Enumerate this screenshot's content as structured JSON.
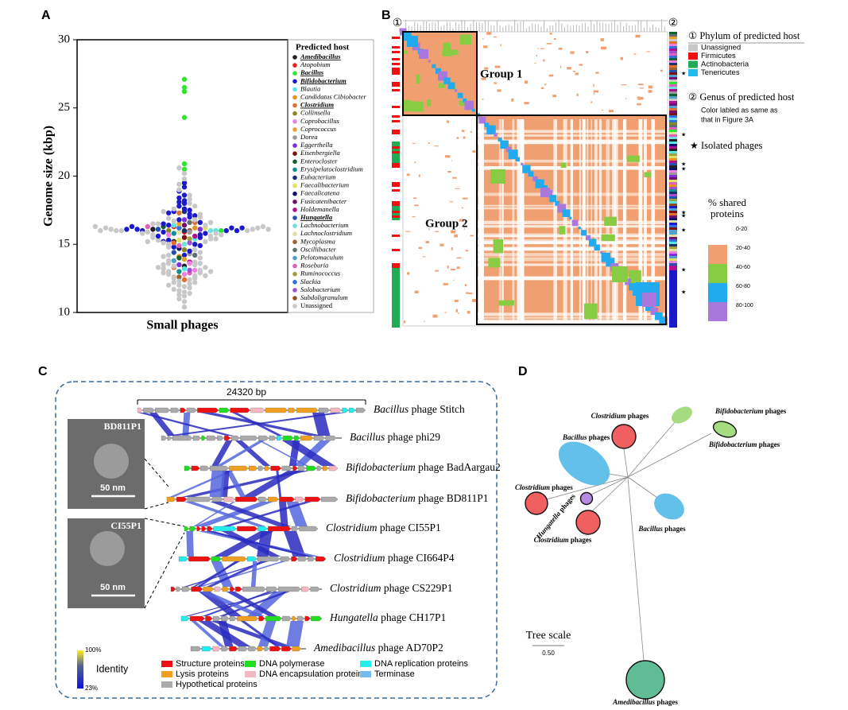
{
  "chart_data": {
    "type": "scatter",
    "label": "A",
    "ylabel": "Genome size (kbp)",
    "xlabel": "Small phages",
    "legend_title": "Predicted host",
    "ylim": [
      10,
      30
    ],
    "yticks": [
      10,
      15,
      20,
      25,
      30
    ],
    "series": [
      {
        "name": "Amedibacillus",
        "color": "#222222",
        "highlight": true,
        "values": [
          13.4,
          15.2,
          16.1
        ]
      },
      {
        "name": "Atopobium",
        "color": "#e8231f",
        "values": [
          15.9,
          16.3
        ]
      },
      {
        "name": "Bacillus",
        "color": "#2ee62e",
        "highlight": true,
        "values": [
          27.1,
          26.5,
          26.2,
          24.3,
          20.9,
          20.5,
          16.0
        ]
      },
      {
        "name": "Bifidobacterium",
        "color": "#1a1acc",
        "highlight": true,
        "values": [
          14.2,
          14.5,
          14.8,
          15.0,
          15.3,
          15.5,
          15.7,
          15.9,
          16.0,
          16.0,
          16.1,
          16.2,
          16.4,
          16.6,
          16.8,
          17.0,
          17.2,
          17.4,
          17.6,
          17.8,
          18.0,
          18.2,
          18.4,
          18.6,
          18.9,
          19.2,
          19.5,
          15.8,
          16.3,
          16.5,
          17.1,
          17.5,
          18.1,
          15.2,
          14.9,
          16.0,
          16.1,
          15.6,
          16.2,
          17.3
        ]
      },
      {
        "name": "Blautia",
        "color": "#55e6e6",
        "values": [
          13.2,
          15.4,
          16.0,
          16.4
        ]
      },
      {
        "name": "Candidatus Cibiobacter",
        "color": "#e89020",
        "values": [
          14.1,
          16.2
        ]
      },
      {
        "name": "Clostridium",
        "color": "#e07030",
        "highlight": true,
        "values": [
          12.4,
          13.3,
          15.1,
          16.6,
          17.3
        ]
      },
      {
        "name": "Collinsella",
        "color": "#888820",
        "values": [
          14.6,
          16.0
        ]
      },
      {
        "name": "Coprobacillus",
        "color": "#f080e0",
        "values": [
          12.8,
          13.1,
          13.6,
          15.7
        ]
      },
      {
        "name": "Coprococcus",
        "color": "#e8a030",
        "values": [
          13.9,
          16.5
        ]
      },
      {
        "name": "Dorea",
        "color": "#999999",
        "values": [
          14.3,
          15.9
        ]
      },
      {
        "name": "Eggerthella",
        "color": "#8030e0",
        "values": [
          13.5,
          16.1,
          16.8
        ]
      },
      {
        "name": "Eisenbergiella",
        "color": "#801010",
        "values": [
          15.5
        ]
      },
      {
        "name": "Enterocloster",
        "color": "#106030",
        "values": [
          14.0,
          16.3
        ]
      },
      {
        "name": "Erysipelatoclostridium",
        "color": "#109090",
        "values": [
          13.0,
          15.8
        ]
      },
      {
        "name": "Eubacterium",
        "color": "#183070",
        "values": [
          16.0,
          17.4
        ]
      },
      {
        "name": "Faecalibacterium",
        "color": "#e0e060",
        "values": [
          15.3,
          16.2
        ]
      },
      {
        "name": "Faecalicatena",
        "color": "#10106a",
        "values": [
          14.7
        ]
      },
      {
        "name": "Fusicatenibacter",
        "color": "#701070",
        "values": [
          16.4
        ]
      },
      {
        "name": "Holdemanella",
        "color": "#b01090",
        "values": [
          13.7,
          15.6
        ]
      },
      {
        "name": "Hungatella",
        "color": "#2050b0",
        "highlight": true,
        "values": [
          14.4,
          16.1
        ]
      },
      {
        "name": "Lachnobacterium",
        "color": "#70e0e0",
        "values": [
          15.0,
          16.0
        ]
      },
      {
        "name": "Lachnoclostridium",
        "color": "#e0e0a0",
        "values": [
          15.9
        ]
      },
      {
        "name": "Mycoplasma",
        "color": "#a06030",
        "values": [
          12.6
        ]
      },
      {
        "name": "Oscillibacter",
        "color": "#607070",
        "values": [
          14.2,
          16.6
        ]
      },
      {
        "name": "Pelotomaculum",
        "color": "#50a0d0",
        "values": [
          13.8
        ]
      },
      {
        "name": "Roseburia",
        "color": "#e060c0",
        "values": [
          12.9,
          14.9,
          16.3
        ]
      },
      {
        "name": "Ruminococcus",
        "color": "#a0a040",
        "values": [
          15.4
        ]
      },
      {
        "name": "Slackia",
        "color": "#3070e0",
        "values": [
          16.2
        ]
      },
      {
        "name": "Solobacterium",
        "color": "#a050d0",
        "values": [
          13.1,
          15.1
        ]
      },
      {
        "name": "Subdoligranulum",
        "color": "#905020",
        "values": [
          16.0
        ]
      },
      {
        "name": "Unassigned",
        "color": "#c8c8c8",
        "values": [
          10.4,
          10.8,
          11.0,
          11.2,
          11.3,
          11.5,
          11.6,
          11.8,
          11.9,
          12.0,
          12.1,
          12.2,
          12.3,
          12.4,
          12.5,
          12.6,
          12.7,
          12.8,
          12.9,
          13.0,
          13.1,
          13.2,
          13.3,
          13.4,
          13.5,
          13.6,
          13.7,
          13.8,
          14.0,
          14.2,
          14.4,
          14.6,
          14.8,
          15.0,
          15.1,
          15.2,
          15.3,
          15.4,
          15.5,
          15.6,
          15.7,
          15.8,
          15.9,
          16.0,
          16.0,
          16.0,
          16.1,
          16.1,
          16.2,
          16.2,
          16.3,
          16.4,
          16.5,
          16.6,
          16.7,
          16.8,
          16.9,
          17.0,
          17.2,
          17.4,
          17.6,
          17.8,
          18.0,
          18.3,
          18.6,
          19.0,
          19.4,
          19.8,
          20.2,
          20.6,
          11.7,
          12.2,
          12.5,
          12.9,
          13.3,
          13.6,
          15.4,
          15.7,
          16.0,
          16.1,
          16.3,
          15.2,
          12.0,
          11.4,
          13.0,
          14.1,
          16.5,
          15.8,
          12.7,
          13.5
        ]
      }
    ]
  },
  "panel_b": {
    "label": "B",
    "marker_1": "①",
    "marker_2": "②",
    "group_1": "Group 1",
    "group_2": "Group 2",
    "phylum_title": "① Phylum of predicted host",
    "phyla": [
      {
        "name": "Unassigned",
        "color": "#c8c8c8"
      },
      {
        "name": "Firmicutes",
        "color": "#ee1111"
      },
      {
        "name": "Actinobacteria",
        "color": "#22aa55"
      },
      {
        "name": "Tenericutes",
        "color": "#22bbee"
      }
    ],
    "genus_title": "② Genus of predicted host",
    "genus_note_1": "Color labled as same as",
    "genus_note_2": "that in Figure 3A",
    "star": "★",
    "isolated": "Isolated phages",
    "shared_1": "% shared",
    "shared_2": "proteins",
    "bins": [
      {
        "name": "0-20",
        "color": "#ffffff"
      },
      {
        "name": "20-40",
        "color": "#f0a070"
      },
      {
        "name": "40-60",
        "color": "#88cc44"
      },
      {
        "name": "60-80",
        "color": "#22aaee"
      },
      {
        "name": "80-100",
        "color": "#aa77dd"
      }
    ]
  },
  "panel_c": {
    "label": "C",
    "scale": "24320 bp",
    "phages": [
      {
        "genus": "Bacillus",
        "name": " phage Stitch"
      },
      {
        "genus": "Bacillus",
        "name": " phage phi29"
      },
      {
        "genus": "Bifidobacterium",
        "name": " phage BadAargau2"
      },
      {
        "genus": "Bifidobacterium",
        "name": " phage BD811P1"
      },
      {
        "genus": "Clostridium",
        "name": " phage CI55P1"
      },
      {
        "genus": "Clostridium",
        "name": " phage CI664P4"
      },
      {
        "genus": "Clostridium",
        "name": " phage CS229P1"
      },
      {
        "genus": "Hungatella",
        "name": " phage CH17P1"
      },
      {
        "genus": "Amedibacillus",
        "name": " phage AD70P2"
      }
    ],
    "image_1": "BD811P1",
    "image_2": "CI55P1",
    "scale_bar": "50 nm",
    "identity": "Identity",
    "identity_max": "100%",
    "identity_min": "23%",
    "genes": [
      {
        "name": "Structure proteins",
        "color": "#ee1111"
      },
      {
        "name": "DNA polymerase",
        "color": "#22dd22"
      },
      {
        "name": "DNA replication proteins",
        "color": "#22eeee"
      },
      {
        "name": "Lysis proteins",
        "color": "#f0a020"
      },
      {
        "name": "DNA encapsulation protein",
        "color": "#f5b8c0"
      },
      {
        "name": "Terminase",
        "color": "#77bbee"
      },
      {
        "name": "Hypothetical proteins",
        "color": "#aaaaaa"
      }
    ]
  },
  "panel_d": {
    "label": "D",
    "tree_scale": "Tree scale",
    "scale_value": "0.50",
    "clades": [
      {
        "genus": "Clostridium",
        "name": " phages"
      },
      {
        "genus": "Bifidobacterium",
        "name": " phages"
      },
      {
        "genus": "Bacillus",
        "name": " phages"
      },
      {
        "genus": "Bifidobacterium",
        "name": " phages"
      },
      {
        "genus": "Clostridium",
        "name": " phages"
      },
      {
        "genus": "Hungatella",
        "name": " phages"
      },
      {
        "genus": "Bacillus",
        "name": " phages"
      },
      {
        "genus": "Clostridium",
        "name": " phages"
      },
      {
        "genus": "Amedibacillus",
        "name": " phages"
      }
    ]
  }
}
